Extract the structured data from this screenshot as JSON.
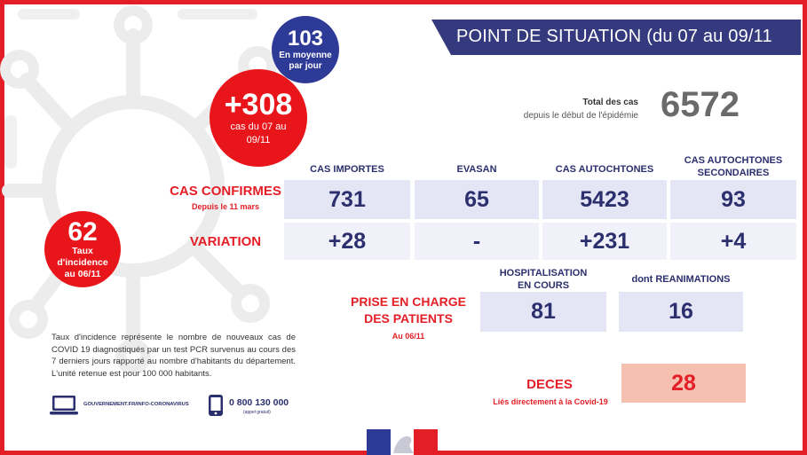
{
  "banner": {
    "title": "POINT DE SITUATION (du 07 au 09/11"
  },
  "circles": {
    "daily_average": {
      "value": "103",
      "label_line1": "En moyenne",
      "label_line2": "par jour"
    },
    "new_cases": {
      "value": "+308",
      "label_line1": "cas du 07 au",
      "label_line2": "09/11"
    },
    "incidence": {
      "value": "62",
      "label_line1": "Taux",
      "label_line2": "d'incidence",
      "label_line3": "au 06/11"
    }
  },
  "total": {
    "label_line1": "Total des cas",
    "label_line2": "depuis le début de l'épidémie",
    "value": "6572"
  },
  "columns": {
    "imported": "CAS IMPORTES",
    "evasan": "EVASAN",
    "autochthonous": "CAS AUTOCHTONES",
    "secondary_line1": "CAS AUTOCHTONES",
    "secondary_line2": "SECONDAIRES"
  },
  "confirmed": {
    "label": "CAS CONFIRMES",
    "sublabel": "Depuis le 11 mars",
    "values": {
      "imported": "731",
      "evasan": "65",
      "autochthonous": "5423",
      "secondary": "93"
    }
  },
  "variation": {
    "label": "VARIATION",
    "values": {
      "imported": "+28",
      "evasan": "-",
      "autochthonous": "+231",
      "secondary": "+4"
    }
  },
  "patients": {
    "label_line1": "PRISE EN CHARGE",
    "label_line2": "DES PATIENTS",
    "sublabel": "Au 06/11",
    "hosp_head_line1": "HOSPITALISATION",
    "hosp_head_line2": "EN COURS",
    "hosp_value": "81",
    "rea_head": "dont REANIMATIONS",
    "rea_value": "16"
  },
  "deaths": {
    "label": "DECES",
    "sublabel": "Liés directement à la Covid-19",
    "value": "28"
  },
  "note": "Taux d'incidence  représente le nombre de nouveaux cas de COVID 19 diagnostiqués par un test PCR survenus au cours des 7 derniers jours rapporté au nombre d'habitants du département. L'unité retenue est pour 100 000 habitants.",
  "contact": {
    "website": "GOUVERNEMENT.FR/INFO-CORONAVIRUS",
    "phone": "0 800 130 000",
    "phone_note": "(appel gratuit)"
  },
  "icons": [
    "virus-background-icon",
    "computer-icon",
    "phone-icon",
    "marianne-logo-icon"
  ],
  "colors": {
    "red": "#e41e26",
    "navy": "#2b2f6e",
    "banner": "#353a7f",
    "blue_circle": "#2d3b97",
    "box": "#e4e5f5",
    "deaths_box": "#f6c0b0"
  }
}
